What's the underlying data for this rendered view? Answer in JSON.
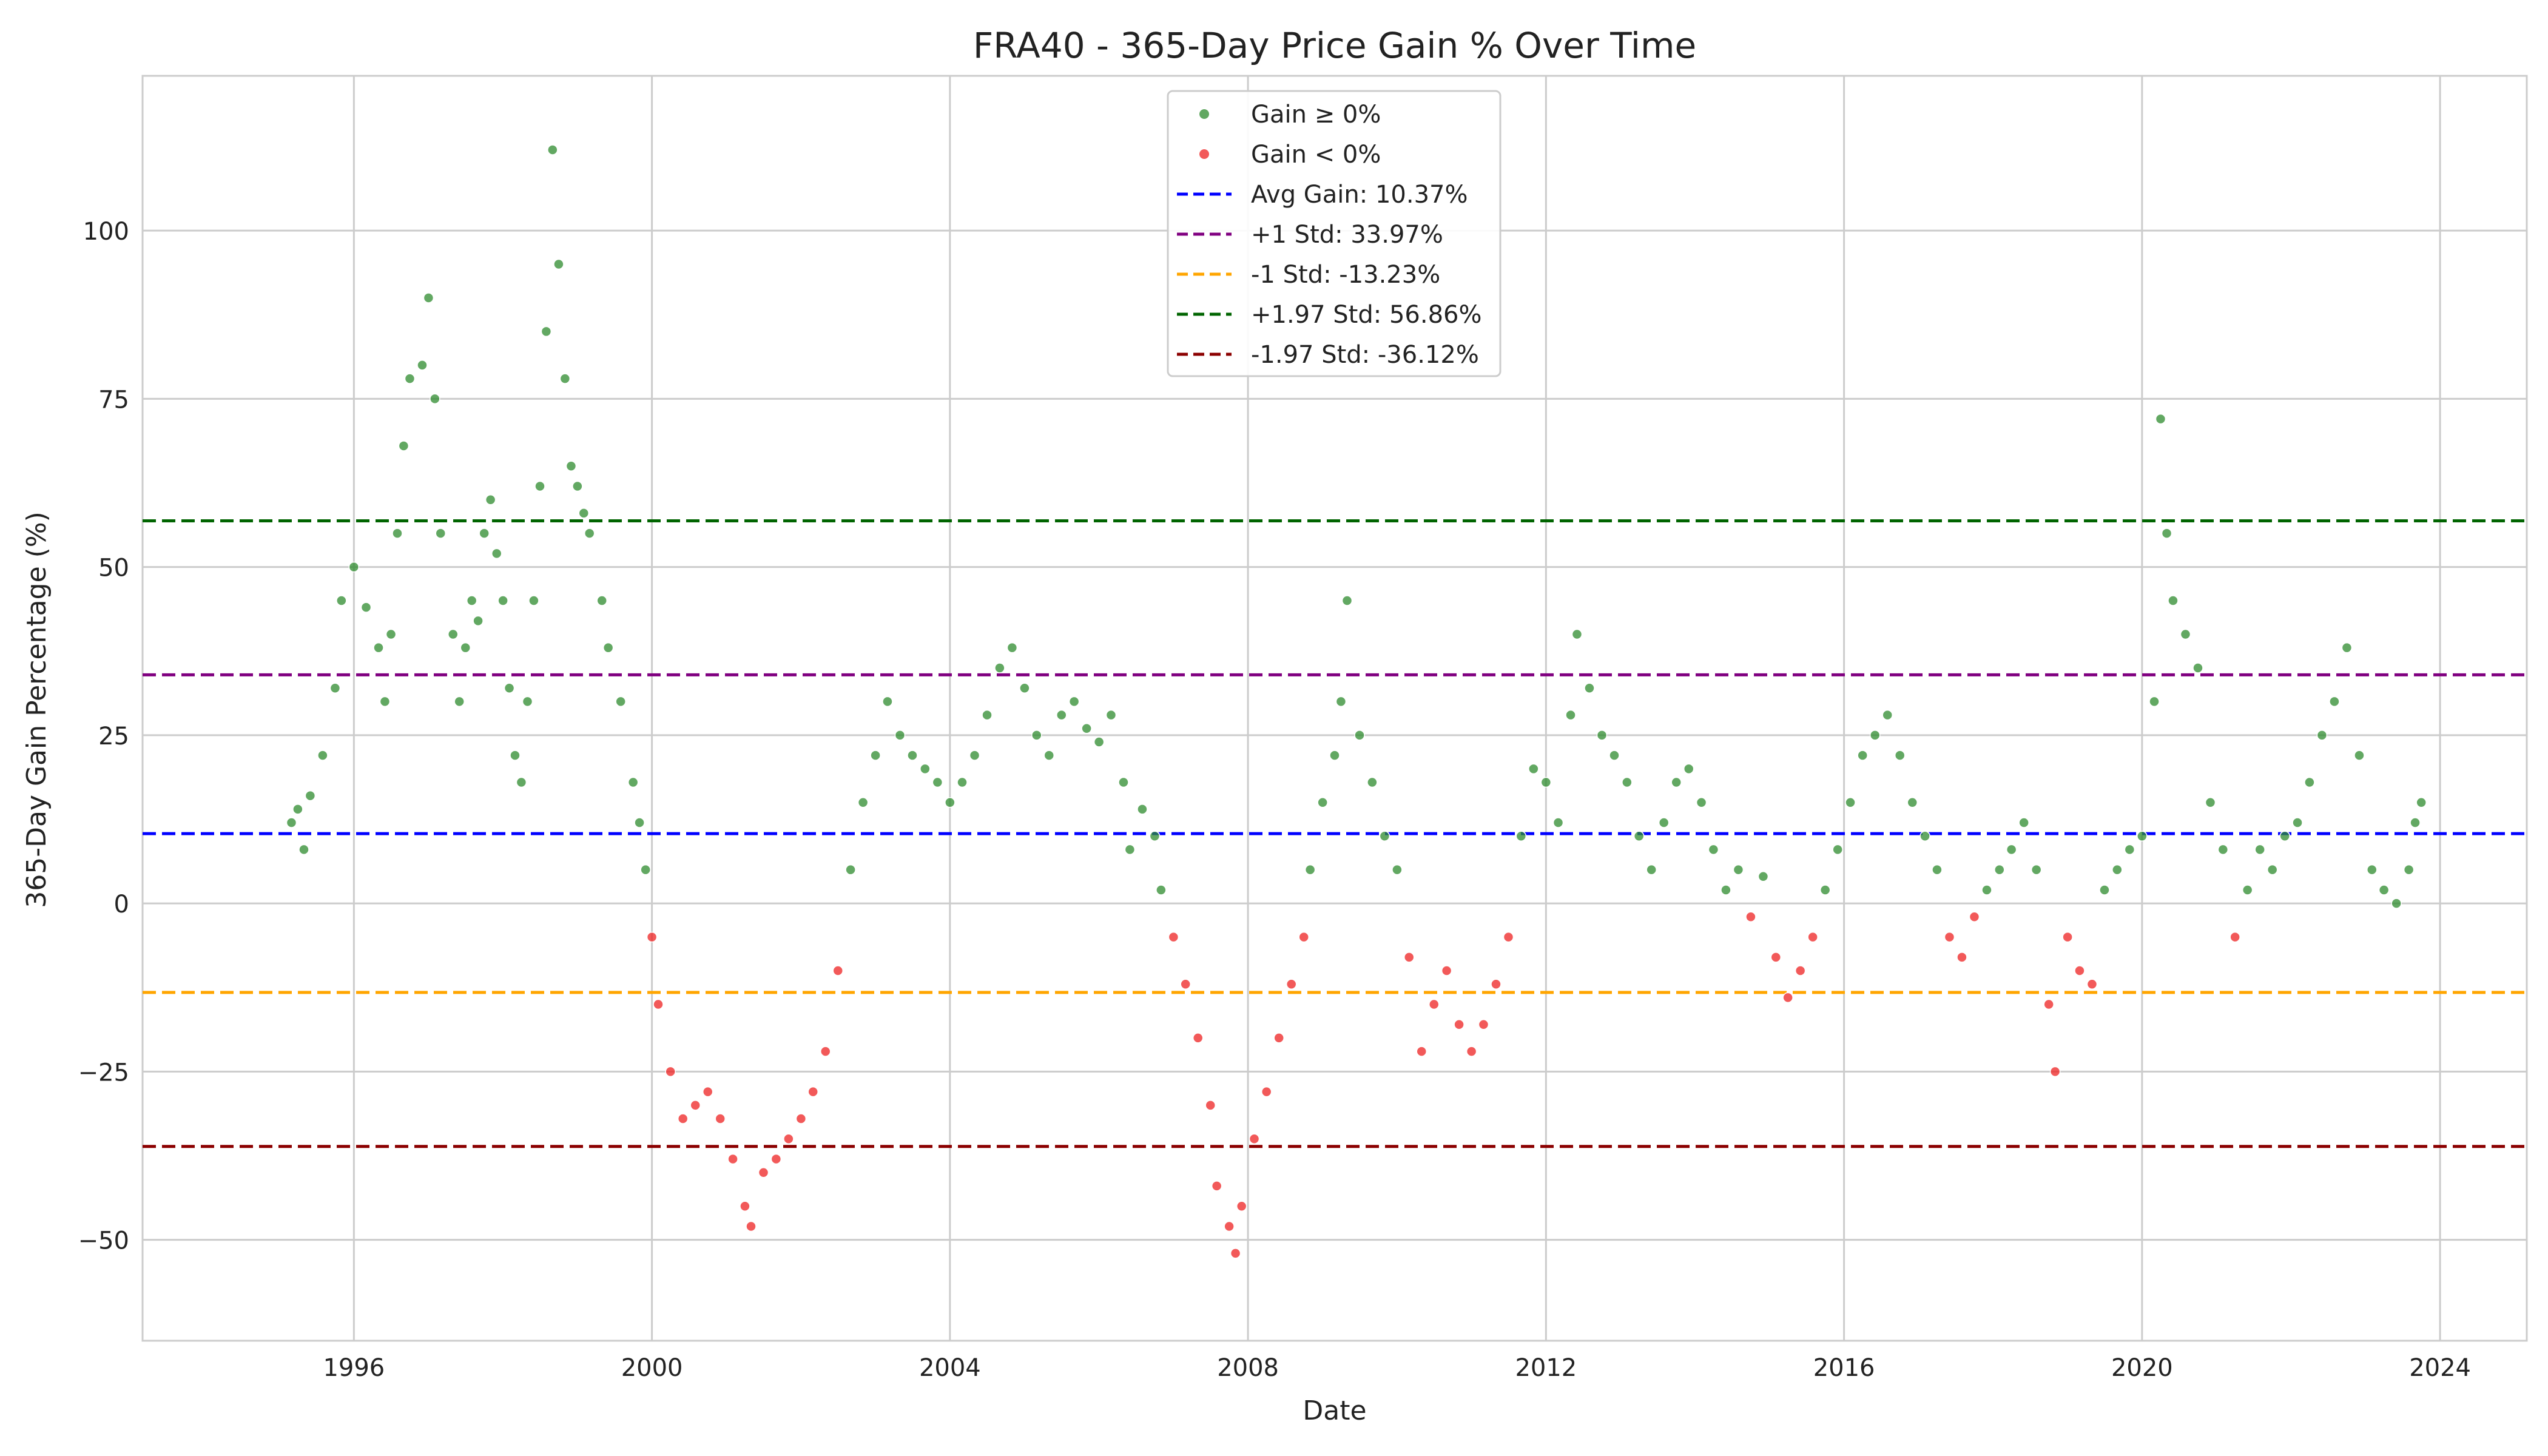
{
  "chart_data": {
    "type": "scatter",
    "title": "FRA40 - 365-Day Price Gain % Over Time",
    "xlabel": "Date",
    "ylabel": "365-Day Gain Percentage (%)",
    "xlim": [
      "1993-03-01",
      "2025-03-01"
    ],
    "ylim": [
      -65,
      123
    ],
    "x_ticks": [
      "1996",
      "2000",
      "2004",
      "2008",
      "2012",
      "2016",
      "2020",
      "2024"
    ],
    "y_ticks": [
      -50,
      -25,
      0,
      25,
      50,
      75,
      100
    ],
    "grid": true,
    "legend_position": "top-center",
    "colors": {
      "gain_positive": "#2e8b2e",
      "gain_negative": "#ee2222",
      "avg": "#0000ff",
      "plus_1_std": "#800080",
      "minus_1_std": "#ffa500",
      "plus_197_std": "#006400",
      "minus_197_std": "#8b0000"
    },
    "series": [
      {
        "name": "Gain ≥ 0%",
        "kind": "scatter",
        "color": "#2e8b2e"
      },
      {
        "name": "Gain < 0%",
        "kind": "scatter",
        "color": "#ee2222"
      }
    ],
    "reference_lines": [
      {
        "name": "Avg Gain: 10.37%",
        "value": 10.37,
        "color": "#0000ff"
      },
      {
        "name": "+1 Std: 33.97%",
        "value": 33.97,
        "color": "#800080"
      },
      {
        "name": "-1 Std: -13.23%",
        "value": -13.23,
        "color": "#ffa500"
      },
      {
        "name": "+1.97 Std: 56.86%",
        "value": 56.86,
        "color": "#006400"
      },
      {
        "name": "-1.97 Std: -36.12%",
        "value": -36.12,
        "color": "#8b0000"
      }
    ],
    "points": [
      [
        "1995-03-01",
        12
      ],
      [
        "1995-04-01",
        14
      ],
      [
        "1995-05-01",
        8
      ],
      [
        "1995-06-01",
        16
      ],
      [
        "1995-08-01",
        22
      ],
      [
        "1995-10-01",
        32
      ],
      [
        "1995-11-01",
        45
      ],
      [
        "1996-01-01",
        50
      ],
      [
        "1996-03-01",
        44
      ],
      [
        "1996-05-01",
        38
      ],
      [
        "1996-06-01",
        30
      ],
      [
        "1996-07-01",
        40
      ],
      [
        "1996-08-01",
        55
      ],
      [
        "1996-09-01",
        68
      ],
      [
        "1996-10-01",
        78
      ],
      [
        "1996-12-01",
        80
      ],
      [
        "1997-01-01",
        90
      ],
      [
        "1997-02-01",
        75
      ],
      [
        "1997-03-01",
        55
      ],
      [
        "1997-05-01",
        40
      ],
      [
        "1997-06-01",
        30
      ],
      [
        "1997-07-01",
        38
      ],
      [
        "1997-08-01",
        45
      ],
      [
        "1997-09-01",
        42
      ],
      [
        "1997-10-01",
        55
      ],
      [
        "1997-11-01",
        60
      ],
      [
        "1997-12-01",
        52
      ],
      [
        "1998-01-01",
        45
      ],
      [
        "1998-02-01",
        32
      ],
      [
        "1998-03-01",
        22
      ],
      [
        "1998-04-01",
        18
      ],
      [
        "1998-05-01",
        30
      ],
      [
        "1998-06-01",
        45
      ],
      [
        "1998-07-01",
        62
      ],
      [
        "1998-08-01",
        85
      ],
      [
        "1998-09-01",
        112
      ],
      [
        "1998-10-01",
        95
      ],
      [
        "1998-11-01",
        78
      ],
      [
        "1998-12-01",
        65
      ],
      [
        "1999-01-01",
        62
      ],
      [
        "1999-02-01",
        58
      ],
      [
        "1999-03-01",
        55
      ],
      [
        "1999-05-01",
        45
      ],
      [
        "1999-06-01",
        38
      ],
      [
        "1999-08-01",
        30
      ],
      [
        "1999-10-01",
        18
      ],
      [
        "1999-11-01",
        12
      ],
      [
        "1999-12-01",
        5
      ],
      [
        "2000-01-01",
        -5
      ],
      [
        "2000-02-01",
        -15
      ],
      [
        "2000-04-01",
        -25
      ],
      [
        "2000-06-01",
        -32
      ],
      [
        "2000-08-01",
        -30
      ],
      [
        "2000-10-01",
        -28
      ],
      [
        "2000-12-01",
        -32
      ],
      [
        "2001-02-01",
        -38
      ],
      [
        "2001-04-01",
        -45
      ],
      [
        "2001-05-01",
        -48
      ],
      [
        "2001-07-01",
        -40
      ],
      [
        "2001-09-01",
        -38
      ],
      [
        "2001-11-01",
        -35
      ],
      [
        "2002-01-01",
        -32
      ],
      [
        "2002-03-01",
        -28
      ],
      [
        "2002-05-01",
        -22
      ],
      [
        "2002-07-01",
        -10
      ],
      [
        "2002-09-01",
        5
      ],
      [
        "2002-11-01",
        15
      ],
      [
        "2003-01-01",
        22
      ],
      [
        "2003-03-01",
        30
      ],
      [
        "2003-05-01",
        25
      ],
      [
        "2003-07-01",
        22
      ],
      [
        "2003-09-01",
        20
      ],
      [
        "2003-11-01",
        18
      ],
      [
        "2004-01-01",
        15
      ],
      [
        "2004-03-01",
        18
      ],
      [
        "2004-05-01",
        22
      ],
      [
        "2004-07-01",
        28
      ],
      [
        "2004-09-01",
        35
      ],
      [
        "2004-11-01",
        38
      ],
      [
        "2005-01-01",
        32
      ],
      [
        "2005-03-01",
        25
      ],
      [
        "2005-05-01",
        22
      ],
      [
        "2005-07-01",
        28
      ],
      [
        "2005-09-01",
        30
      ],
      [
        "2005-11-01",
        26
      ],
      [
        "2006-01-01",
        24
      ],
      [
        "2006-03-01",
        28
      ],
      [
        "2006-05-01",
        18
      ],
      [
        "2006-06-01",
        8
      ],
      [
        "2006-08-01",
        14
      ],
      [
        "2006-10-01",
        10
      ],
      [
        "2006-11-01",
        2
      ],
      [
        "2007-01-01",
        -5
      ],
      [
        "2007-03-01",
        -12
      ],
      [
        "2007-05-01",
        -20
      ],
      [
        "2007-07-01",
        -30
      ],
      [
        "2007-08-01",
        -42
      ],
      [
        "2007-10-01",
        -48
      ],
      [
        "2007-11-01",
        -52
      ],
      [
        "2007-12-01",
        -45
      ],
      [
        "2008-02-01",
        -35
      ],
      [
        "2008-04-01",
        -28
      ],
      [
        "2008-06-01",
        -20
      ],
      [
        "2008-08-01",
        -12
      ],
      [
        "2008-10-01",
        -5
      ],
      [
        "2008-11-01",
        5
      ],
      [
        "2009-01-01",
        15
      ],
      [
        "2009-03-01",
        22
      ],
      [
        "2009-04-01",
        30
      ],
      [
        "2009-05-01",
        45
      ],
      [
        "2009-07-01",
        25
      ],
      [
        "2009-09-01",
        18
      ],
      [
        "2009-11-01",
        10
      ],
      [
        "2010-01-01",
        5
      ],
      [
        "2010-03-01",
        -8
      ],
      [
        "2010-05-01",
        -22
      ],
      [
        "2010-07-01",
        -15
      ],
      [
        "2010-09-01",
        -10
      ],
      [
        "2010-11-01",
        -18
      ],
      [
        "2011-01-01",
        -22
      ],
      [
        "2011-03-01",
        -18
      ],
      [
        "2011-05-01",
        -12
      ],
      [
        "2011-07-01",
        -5
      ],
      [
        "2011-09-01",
        10
      ],
      [
        "2011-11-01",
        20
      ],
      [
        "2012-01-01",
        18
      ],
      [
        "2012-03-01",
        12
      ],
      [
        "2012-05-01",
        28
      ],
      [
        "2012-06-01",
        40
      ],
      [
        "2012-08-01",
        32
      ],
      [
        "2012-10-01",
        25
      ],
      [
        "2012-12-01",
        22
      ],
      [
        "2013-02-01",
        18
      ],
      [
        "2013-04-01",
        10
      ],
      [
        "2013-06-01",
        5
      ],
      [
        "2013-08-01",
        12
      ],
      [
        "2013-10-01",
        18
      ],
      [
        "2013-12-01",
        20
      ],
      [
        "2014-02-01",
        15
      ],
      [
        "2014-04-01",
        8
      ],
      [
        "2014-06-01",
        2
      ],
      [
        "2014-08-01",
        5
      ],
      [
        "2014-10-01",
        -2
      ],
      [
        "2014-12-01",
        4
      ],
      [
        "2015-02-01",
        -8
      ],
      [
        "2015-04-01",
        -14
      ],
      [
        "2015-06-01",
        -10
      ],
      [
        "2015-08-01",
        -5
      ],
      [
        "2015-10-01",
        2
      ],
      [
        "2015-12-01",
        8
      ],
      [
        "2016-02-01",
        15
      ],
      [
        "2016-04-01",
        22
      ],
      [
        "2016-06-01",
        25
      ],
      [
        "2016-08-01",
        28
      ],
      [
        "2016-10-01",
        22
      ],
      [
        "2016-12-01",
        15
      ],
      [
        "2017-02-01",
        10
      ],
      [
        "2017-04-01",
        5
      ],
      [
        "2017-06-01",
        -5
      ],
      [
        "2017-08-01",
        -8
      ],
      [
        "2017-10-01",
        -2
      ],
      [
        "2017-12-01",
        2
      ],
      [
        "2018-02-01",
        5
      ],
      [
        "2018-04-01",
        8
      ],
      [
        "2018-06-01",
        12
      ],
      [
        "2018-08-01",
        5
      ],
      [
        "2018-10-01",
        -15
      ],
      [
        "2018-11-01",
        -25
      ],
      [
        "2019-01-01",
        -5
      ],
      [
        "2019-03-01",
        -10
      ],
      [
        "2019-05-01",
        -12
      ],
      [
        "2019-07-01",
        2
      ],
      [
        "2019-09-01",
        5
      ],
      [
        "2019-11-01",
        8
      ],
      [
        "2020-01-01",
        10
      ],
      [
        "2020-03-01",
        30
      ],
      [
        "2020-04-01",
        72
      ],
      [
        "2020-05-01",
        55
      ],
      [
        "2020-06-01",
        45
      ],
      [
        "2020-08-01",
        40
      ],
      [
        "2020-10-01",
        35
      ],
      [
        "2020-12-01",
        15
      ],
      [
        "2021-02-01",
        8
      ],
      [
        "2021-04-01",
        -5
      ],
      [
        "2021-06-01",
        2
      ],
      [
        "2021-08-01",
        8
      ],
      [
        "2021-10-01",
        5
      ],
      [
        "2021-12-01",
        10
      ],
      [
        "2022-02-01",
        12
      ],
      [
        "2022-04-01",
        18
      ],
      [
        "2022-06-01",
        25
      ],
      [
        "2022-08-01",
        30
      ],
      [
        "2022-10-01",
        38
      ],
      [
        "2022-12-01",
        22
      ],
      [
        "2023-02-01",
        5
      ],
      [
        "2023-04-01",
        2
      ],
      [
        "2023-06-01",
        0
      ],
      [
        "2023-08-01",
        5
      ],
      [
        "2023-09-01",
        12
      ],
      [
        "2023-10-01",
        15
      ]
    ]
  }
}
